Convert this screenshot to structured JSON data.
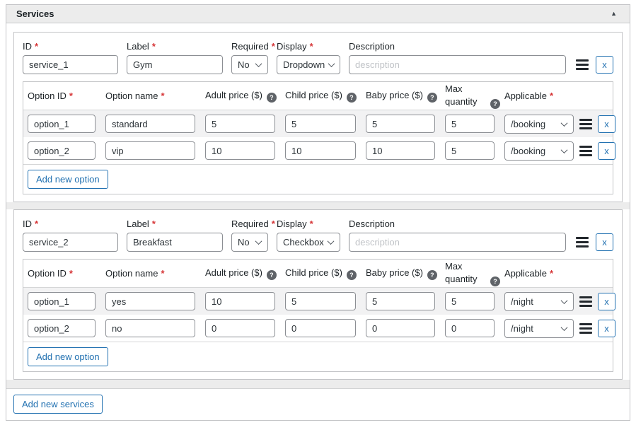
{
  "panel": {
    "title": "Services",
    "collapse_icon_glyph": "▲"
  },
  "markers": {
    "required_asterisk": "*",
    "help_glyph": "?"
  },
  "service_fields": {
    "id": "ID",
    "label": "Label",
    "required": "Required",
    "display": "Display",
    "description": "Description"
  },
  "option_columns": {
    "id": "Option ID",
    "name": "Option name",
    "adult": "Adult price ($)",
    "child": "Child price ($)",
    "baby": "Baby price ($)",
    "max": "Max quantity",
    "applicable": "Applicable"
  },
  "buttons": {
    "add_option": "Add new option",
    "add_services": "Add new services",
    "remove": "x"
  },
  "services": [
    {
      "id": "service_1",
      "label": "Gym",
      "required": "No",
      "display": "Dropdown",
      "description_placeholder": "description",
      "options": [
        {
          "id": "option_1",
          "name": "standard",
          "adult": "5",
          "child": "5",
          "baby": "5",
          "max": "5",
          "applicable": "/booking"
        },
        {
          "id": "option_2",
          "name": "vip",
          "adult": "10",
          "child": "10",
          "baby": "10",
          "max": "5",
          "applicable": "/booking"
        }
      ]
    },
    {
      "id": "service_2",
      "label": "Breakfast",
      "required": "No",
      "display": "Checkbox",
      "description_placeholder": "description",
      "options": [
        {
          "id": "option_1",
          "name": "yes",
          "adult": "10",
          "child": "5",
          "baby": "5",
          "max": "5",
          "applicable": "/night"
        },
        {
          "id": "option_2",
          "name": "no",
          "adult": "0",
          "child": "0",
          "baby": "0",
          "max": "0",
          "applicable": "/night"
        }
      ]
    }
  ],
  "colors": {
    "accent_blue": "#2271b1",
    "required_red": "#d63638",
    "panel_header_bg": "#ececec",
    "stripe_bg": "#f2f2f3",
    "box_border": "#c3c4c7",
    "input_border": "#8c8f94"
  }
}
